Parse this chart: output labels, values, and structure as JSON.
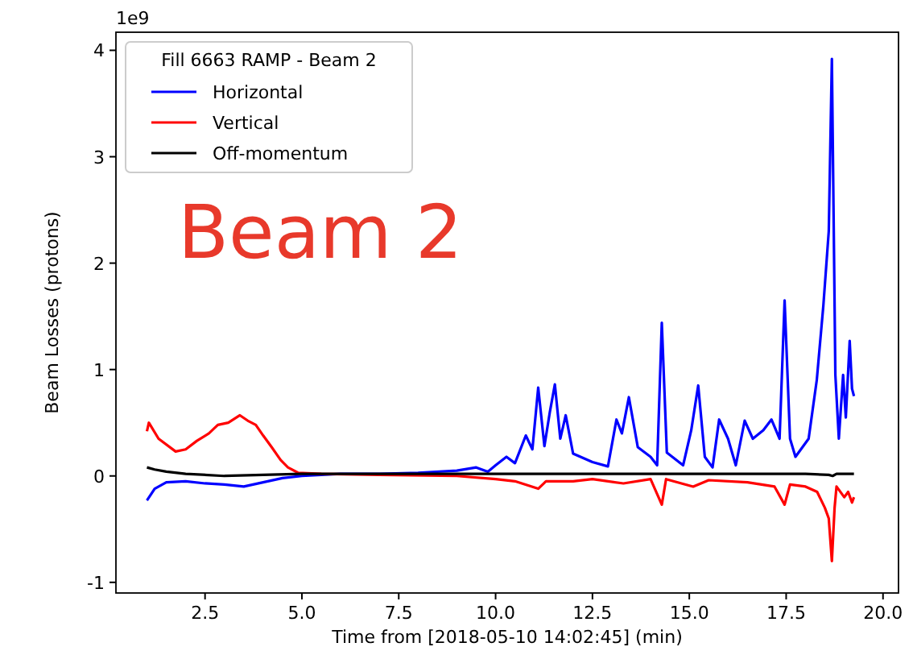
{
  "chart_data": {
    "type": "line",
    "xlabel": "Time from [2018-05-10 14:02:45] (min)",
    "ylabel": "Beam Losses (protons)",
    "legend_title": "Fill 6663 RAMP - Beam 2",
    "legend": "top left",
    "grid": false,
    "marker": "none",
    "line_style": "solid",
    "annotations": [
      "1e9",
      "Beam 2"
    ],
    "xlim": [
      0.2,
      20.4
    ],
    "ylim": [
      -1.1,
      4.17
    ],
    "xticks": [
      {
        "value": 2.5,
        "label": "2.5"
      },
      {
        "value": 5,
        "label": "5.0"
      },
      {
        "value": 7.5,
        "label": "7.5"
      },
      {
        "value": 10,
        "label": "10.0"
      },
      {
        "value": 12.5,
        "label": "12.5"
      },
      {
        "value": 15,
        "label": "15.0"
      },
      {
        "value": 17.5,
        "label": "17.5"
      },
      {
        "value": 20,
        "label": "20.0"
      }
    ],
    "yticks": [
      -1,
      0,
      1,
      2,
      3,
      4
    ],
    "series": [
      {
        "name": "Horizontal",
        "color": "#0000ff",
        "x": [
          1.0,
          1.2,
          1.5,
          2.0,
          2.5,
          3.0,
          3.5,
          4.0,
          4.5,
          5.0,
          6.0,
          7.0,
          8.0,
          9.0,
          9.5,
          9.8,
          10.0,
          10.28,
          10.5,
          10.78,
          10.95,
          11.1,
          11.26,
          11.4,
          11.53,
          11.67,
          11.81,
          12.0,
          12.5,
          12.9,
          13.12,
          13.26,
          13.44,
          13.67,
          14.0,
          14.17,
          14.29,
          14.42,
          14.84,
          15.05,
          15.23,
          15.4,
          15.6,
          15.77,
          16.0,
          16.2,
          16.43,
          16.64,
          16.91,
          17.12,
          17.33,
          17.46,
          17.6,
          17.74,
          18.08,
          18.29,
          18.46,
          18.6,
          18.68,
          18.77,
          18.86,
          18.97,
          19.04,
          19.14,
          19.2,
          19.25
        ],
        "values": [
          -0.23,
          -0.12,
          -0.06,
          -0.05,
          -0.07,
          -0.08,
          -0.1,
          -0.06,
          -0.02,
          0.0,
          0.02,
          0.02,
          0.03,
          0.05,
          0.08,
          0.04,
          0.1,
          0.18,
          0.12,
          0.38,
          0.25,
          0.83,
          0.28,
          0.6,
          0.86,
          0.35,
          0.57,
          0.21,
          0.13,
          0.09,
          0.53,
          0.4,
          0.74,
          0.27,
          0.18,
          0.1,
          1.44,
          0.22,
          0.1,
          0.43,
          0.85,
          0.18,
          0.08,
          0.53,
          0.35,
          0.1,
          0.52,
          0.35,
          0.43,
          0.53,
          0.35,
          1.65,
          0.35,
          0.18,
          0.35,
          0.9,
          1.6,
          2.3,
          3.92,
          0.95,
          0.35,
          0.95,
          0.55,
          1.27,
          0.82,
          0.75
        ]
      },
      {
        "name": "Vertical",
        "color": "#ff0000",
        "x": [
          1.0,
          1.05,
          1.3,
          1.74,
          2.0,
          2.29,
          2.6,
          2.83,
          3.1,
          3.4,
          3.6,
          3.81,
          4.0,
          4.22,
          4.45,
          4.64,
          4.9,
          5.5,
          7.0,
          9.0,
          10.0,
          10.5,
          11.1,
          11.3,
          12.0,
          12.5,
          13.3,
          14.0,
          14.29,
          14.4,
          15.1,
          15.5,
          16.5,
          17.2,
          17.46,
          17.6,
          18.0,
          18.3,
          18.5,
          18.6,
          18.68,
          18.75,
          18.8,
          19.0,
          19.1,
          19.2,
          19.25
        ],
        "values": [
          0.42,
          0.5,
          0.35,
          0.23,
          0.25,
          0.33,
          0.4,
          0.48,
          0.5,
          0.57,
          0.52,
          0.48,
          0.38,
          0.27,
          0.15,
          0.08,
          0.03,
          0.02,
          0.01,
          0.0,
          -0.03,
          -0.05,
          -0.12,
          -0.05,
          -0.05,
          -0.03,
          -0.07,
          -0.03,
          -0.27,
          -0.03,
          -0.1,
          -0.04,
          -0.06,
          -0.1,
          -0.27,
          -0.08,
          -0.1,
          -0.15,
          -0.3,
          -0.4,
          -0.8,
          -0.3,
          -0.1,
          -0.2,
          -0.15,
          -0.25,
          -0.2
        ]
      },
      {
        "name": "Off-momentum",
        "color": "#000000",
        "x": [
          1.0,
          1.2,
          1.5,
          2.0,
          3.0,
          4.0,
          5.0,
          7.0,
          10.0,
          13.0,
          16.0,
          18.0,
          18.6,
          18.7,
          18.8,
          19.25
        ],
        "values": [
          0.08,
          0.06,
          0.04,
          0.02,
          0.0,
          0.01,
          0.02,
          0.02,
          0.02,
          0.02,
          0.02,
          0.02,
          0.01,
          0.0,
          0.02,
          0.02
        ]
      }
    ]
  }
}
